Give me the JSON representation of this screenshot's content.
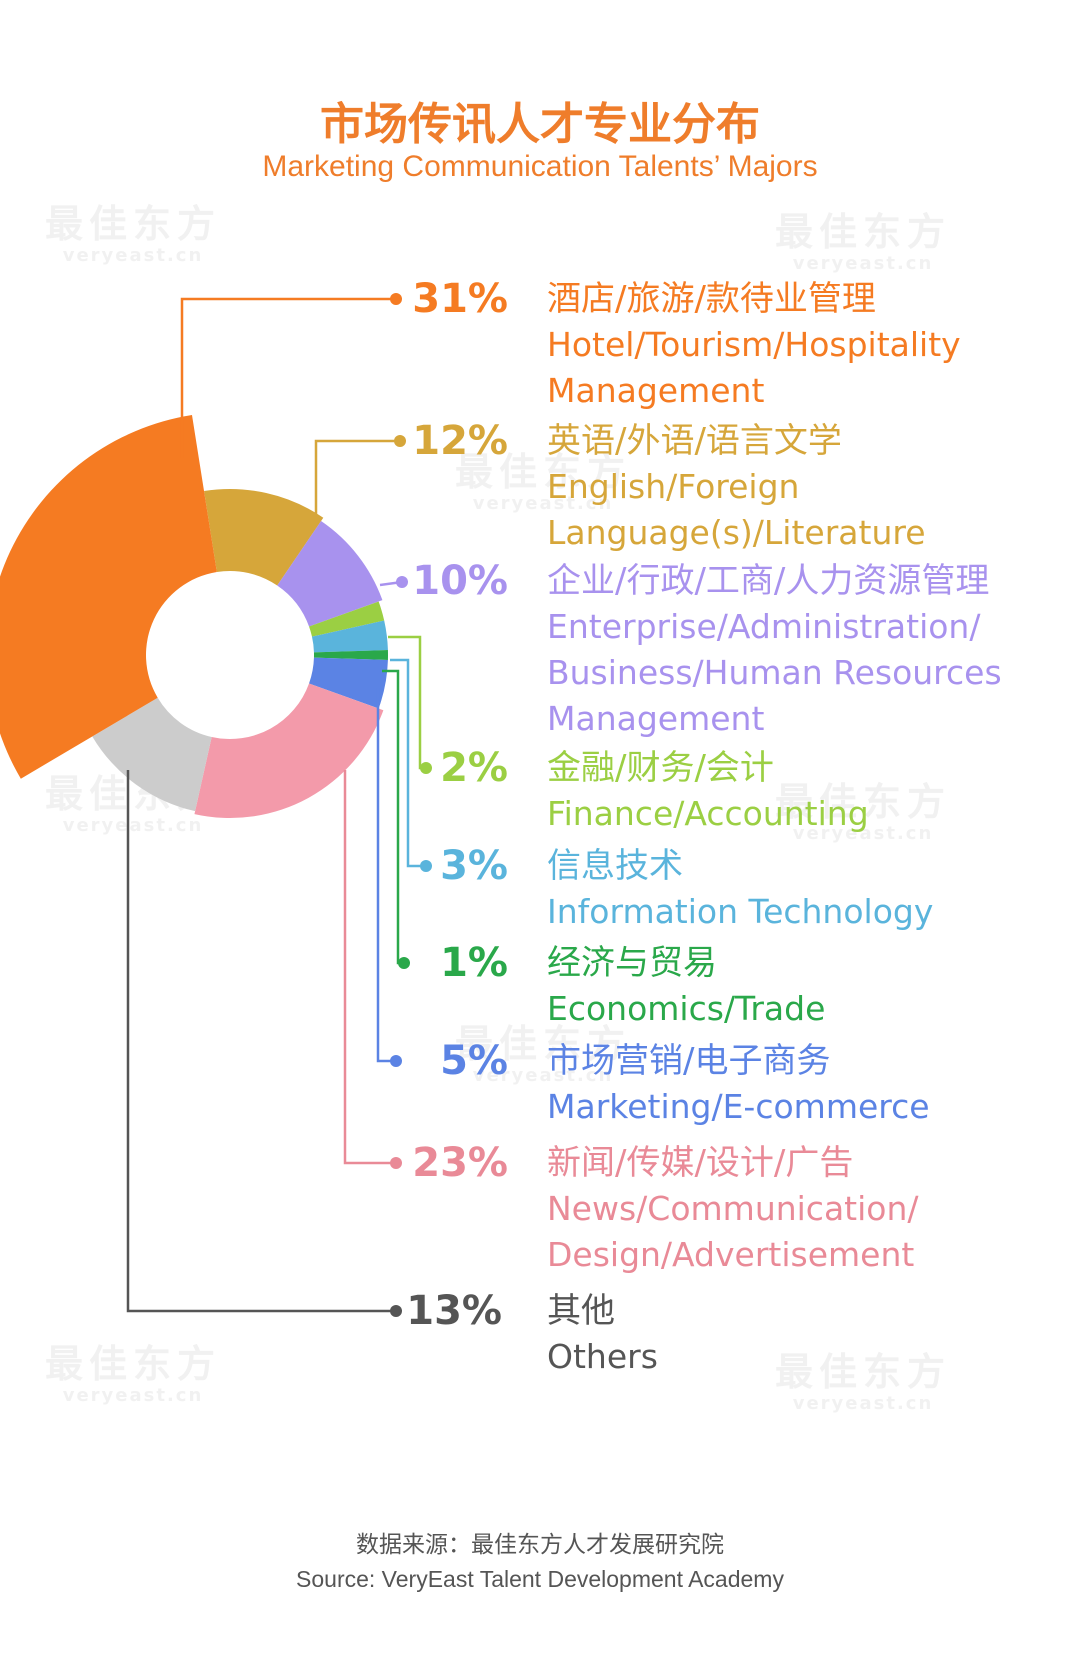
{
  "title": "市场传讯人才专业分布",
  "subtitle": "Marketing Communication Talents’ Majors",
  "watermark": {
    "cn": "最佳东方",
    "en": "veryeast.cn"
  },
  "source": {
    "cn": "数据来源：最佳东方人才发展研究院",
    "en": "Source: VeryEast Talent Development Academy"
  },
  "chart_data": {
    "type": "pie",
    "variant": "donut",
    "title": "市场传讯人才专业分布",
    "subtitle": "Marketing Communication Talents’ Majors",
    "unit": "%",
    "slices": [
      {
        "label": "31%",
        "value": 31,
        "name_cn": "酒店/旅游/款待业管理",
        "name_en": [
          "Hotel/Tourism/Hospitality",
          "Management"
        ],
        "color": "#f57b22"
      },
      {
        "label": "12%",
        "value": 12,
        "name_cn": "英语/外语/语言文学",
        "name_en": [
          "English/Foreign",
          "Language(s)/Literature"
        ],
        "color": "#d6a63a"
      },
      {
        "label": "10%",
        "value": 10,
        "name_cn": "企业/行政/工商/人力资源管理",
        "name_en": [
          "Enterprise/Administration/",
          "Business/Human Resources",
          "Management"
        ],
        "color": "#a892ee"
      },
      {
        "label": "2%",
        "value": 2,
        "name_cn": "金融/财务/会计",
        "name_en": [
          "Finance/Accounting"
        ],
        "color": "#9bcf43"
      },
      {
        "label": "3%",
        "value": 3,
        "name_cn": "信息技术",
        "name_en": [
          "Information Technology"
        ],
        "color": "#5ab4dc"
      },
      {
        "label": "1%",
        "value": 1,
        "name_cn": "经济与贸易",
        "name_en": [
          "Economics/Trade"
        ],
        "color": "#2aa84a"
      },
      {
        "label": "5%",
        "value": 5,
        "name_cn": "市场营销/电子商务",
        "name_en": [
          "Marketing/E-commerce"
        ],
        "color": "#5b83e4"
      },
      {
        "label": "23%",
        "value": 23,
        "name_cn": "新闻/传媒/设计/广告",
        "name_en": [
          "News/Communication/",
          "Design/Advertisement"
        ],
        "color": "#f39aaa"
      },
      {
        "label": "13%",
        "value": 13,
        "name_cn": "其他",
        "name_en": [
          "Others"
        ],
        "color": "#cccccc"
      }
    ],
    "label_colors": [
      "#f57b22",
      "#d6a63a",
      "#a892ee",
      "#9bcf43",
      "#5ab4dc",
      "#2aa84a",
      "#5b83e4",
      "#e98a97",
      "#555555"
    ],
    "text_colors": [
      "#f57b22",
      "#d6a63a",
      "#a892ee",
      "#9bcf43",
      "#5ab4dc",
      "#2aa84a",
      "#5b83e4",
      "#e98a97",
      "#555555"
    ]
  }
}
